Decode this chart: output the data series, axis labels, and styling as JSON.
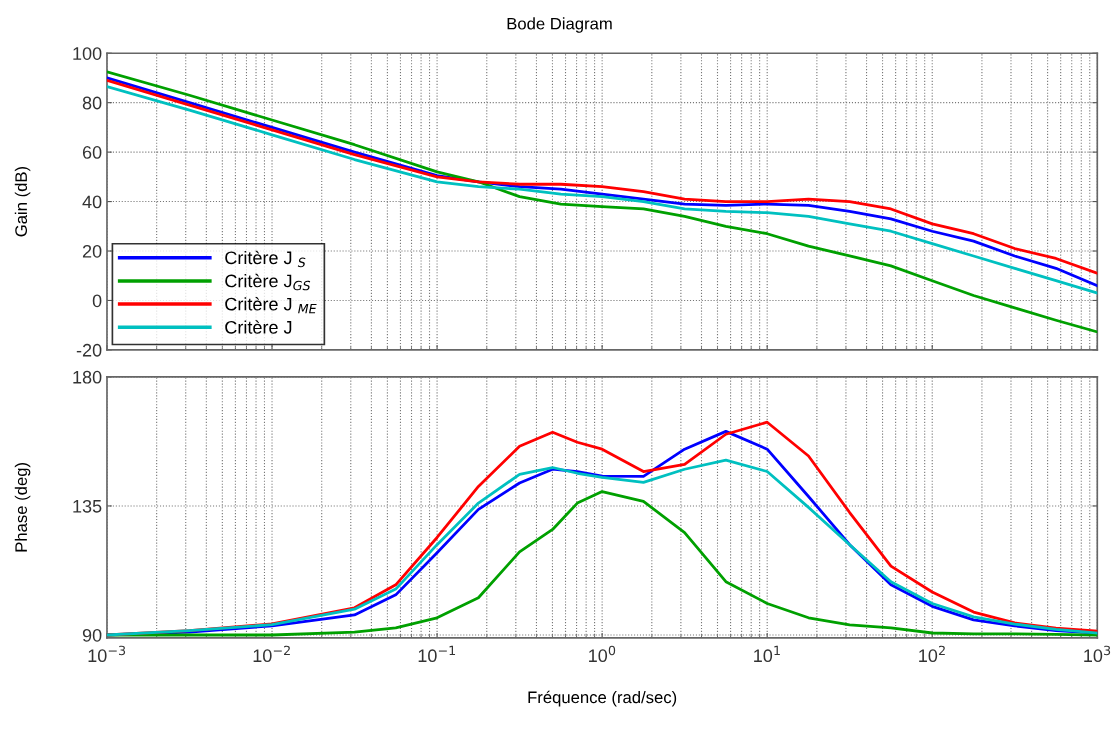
{
  "chart_data": [
    {
      "type": "line",
      "title": "Bode Diagram",
      "ylabel": "Gain (dB)",
      "log": "x",
      "grid": true,
      "legend": "lower left",
      "tick_labels": "y",
      "line_style": "solid",
      "x": [
        0.001,
        0.00316,
        0.01,
        0.0316,
        0.1,
        0.178,
        0.316,
        0.562,
        1,
        1.78,
        3.16,
        5.62,
        10,
        17.8,
        31.6,
        56.2,
        100,
        178,
        316,
        562,
        1000
      ],
      "xlim": [
        0.001,
        1000
      ],
      "ylim": [
        -20,
        100
      ],
      "yticks": [
        -20,
        0,
        20,
        40,
        60,
        80,
        100
      ],
      "series": [
        {
          "name": "Critère J $_{S}$",
          "color": "#0000ff",
          "values": [
            90,
            80,
            70,
            60,
            50.5,
            48,
            46,
            45,
            43,
            41,
            39,
            38.5,
            39,
            38.5,
            36,
            33,
            28,
            24,
            18,
            13,
            6
          ]
        },
        {
          "name": "Critère J$_{GS}$",
          "color": "#00a000",
          "values": [
            92.5,
            83,
            73,
            63,
            52,
            48,
            42,
            39,
            38,
            37,
            34,
            30,
            27,
            22,
            18,
            14,
            8,
            2,
            -3,
            -8,
            -12.7
          ]
        },
        {
          "name": "Critère J $_{ME}$",
          "color": "#ff0000",
          "values": [
            89,
            79,
            69,
            59,
            50,
            48,
            47,
            47,
            46,
            44,
            41,
            40,
            40,
            41,
            40,
            37,
            31,
            27,
            21,
            17,
            11
          ]
        },
        {
          "name": "Critère J",
          "color": "#00c0c0",
          "values": [
            86.5,
            77,
            67,
            57,
            48,
            46,
            45,
            43,
            42,
            40,
            37,
            36,
            35.5,
            34,
            31,
            28,
            23,
            18,
            13,
            8,
            3
          ]
        }
      ]
    },
    {
      "type": "line",
      "ylabel": "Phase (deg)",
      "xlabel": "Fréquence (rad/sec)",
      "log": "x",
      "grid": true,
      "line_style": "solid",
      "x": [
        0.001,
        0.00316,
        0.01,
        0.0316,
        0.0562,
        0.1,
        0.178,
        0.316,
        0.501,
        0.708,
        1,
        1.78,
        3.16,
        5.62,
        10,
        17.8,
        31.6,
        56.2,
        100,
        178,
        316,
        562,
        1000
      ],
      "xlim": [
        0.001,
        1000
      ],
      "ylim": [
        89,
        180
      ],
      "yticks": [
        90,
        135,
        180
      ],
      "xticks": [
        {
          "value": 0.001,
          "label": "10$^{−3}$"
        },
        {
          "value": 0.01,
          "label": "10$^{−2}$"
        },
        {
          "value": 0.1,
          "label": "10$^{−1}$"
        },
        {
          "value": 1,
          "label": "10$^{0}$"
        },
        {
          "value": 10,
          "label": "10$^{1}$"
        },
        {
          "value": 100,
          "label": "10$^{2}$"
        },
        {
          "value": 1000,
          "label": "10$^{3}$"
        }
      ],
      "series": [
        {
          "color": "#0000ff",
          "values": [
            90,
            91,
            93.2,
            97,
            104,
            118.7,
            133.8,
            143,
            147.8,
            147,
            145.4,
            145.3,
            154.8,
            161,
            154.8,
            138.3,
            121.5,
            107.5,
            100,
            95.3,
            93.2,
            91.5,
            90.7
          ]
        },
        {
          "color": "#00a000",
          "values": [
            90,
            90,
            90,
            91,
            92.5,
            96,
            103,
            119,
            126.8,
            136,
            140,
            136.6,
            125.7,
            108.6,
            101,
            96,
            93.5,
            92.5,
            90.7,
            90.4,
            90.4,
            90.2,
            90
          ]
        },
        {
          "color": "#ff0000",
          "values": [
            90,
            91.5,
            93.9,
            99.5,
            107.5,
            124,
            141.8,
            155.8,
            160.7,
            157.2,
            154.8,
            147,
            149.5,
            160,
            164.2,
            152.4,
            132.7,
            114,
            105,
            98,
            94.2,
            92.4,
            91.4
          ]
        },
        {
          "color": "#00c0c0",
          "values": [
            90,
            91.5,
            93.6,
            99,
            106,
            121.5,
            136,
            146,
            148.4,
            146.4,
            145,
            143.2,
            147.8,
            151,
            147,
            134.5,
            121.5,
            108.6,
            101,
            96.3,
            93.8,
            92,
            90.7
          ]
        }
      ]
    }
  ]
}
